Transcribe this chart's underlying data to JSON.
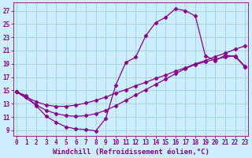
{
  "xlabel": "Windchill (Refroidissement éolien,°C)",
  "bg_color": "#cceeff",
  "line_color": "#880088",
  "grid_color": "#99cccc",
  "x_ticks": [
    0,
    1,
    2,
    3,
    4,
    5,
    6,
    7,
    8,
    9,
    10,
    11,
    12,
    13,
    14,
    15,
    16,
    17,
    18,
    19,
    20,
    21,
    22,
    23
  ],
  "y_ticks": [
    9,
    11,
    13,
    15,
    17,
    19,
    21,
    23,
    25,
    27
  ],
  "xlim": [
    -0.3,
    23.3
  ],
  "ylim": [
    8.2,
    28.2
  ],
  "line1_x": [
    0,
    1,
    2,
    3,
    4,
    5,
    6,
    7,
    8,
    9,
    10,
    11,
    12,
    13,
    14,
    15,
    16,
    17,
    18,
    19,
    20,
    21,
    22,
    23
  ],
  "line1_y": [
    14.8,
    14.2,
    12.7,
    11.1,
    10.2,
    9.5,
    9.2,
    9.1,
    8.9,
    10.8,
    15.8,
    19.2,
    20.0,
    23.2,
    25.2,
    26.0,
    27.3,
    27.0,
    26.2,
    20.2,
    19.5,
    20.3,
    20.1,
    18.5
  ],
  "line2_x": [
    0,
    1,
    2,
    3,
    4,
    5,
    6,
    7,
    8,
    9,
    10,
    11,
    12,
    13,
    14,
    15,
    16,
    17,
    18,
    19,
    20,
    21,
    22,
    23
  ],
  "line2_y": [
    14.8,
    14.0,
    13.3,
    12.8,
    12.6,
    12.6,
    12.8,
    13.1,
    13.5,
    14.0,
    14.6,
    15.1,
    15.7,
    16.2,
    16.8,
    17.3,
    17.9,
    18.4,
    19.0,
    19.5,
    20.1,
    20.6,
    21.2,
    21.7
  ],
  "line3_x": [
    0,
    2,
    3,
    4,
    5,
    6,
    7,
    8,
    9,
    10,
    11,
    12,
    13,
    14,
    15,
    16,
    17,
    18,
    19,
    20,
    21,
    22,
    23
  ],
  "line3_y": [
    14.8,
    12.8,
    12.0,
    11.5,
    11.2,
    11.1,
    11.2,
    11.5,
    12.0,
    12.7,
    13.5,
    14.3,
    15.1,
    15.9,
    16.7,
    17.5,
    18.3,
    18.9,
    19.3,
    19.7,
    20.0,
    20.2,
    18.6
  ],
  "xlabel_fontsize": 6.5,
  "tick_fontsize": 5.5,
  "marker": "D",
  "markersize": 2.5,
  "linewidth": 0.9
}
